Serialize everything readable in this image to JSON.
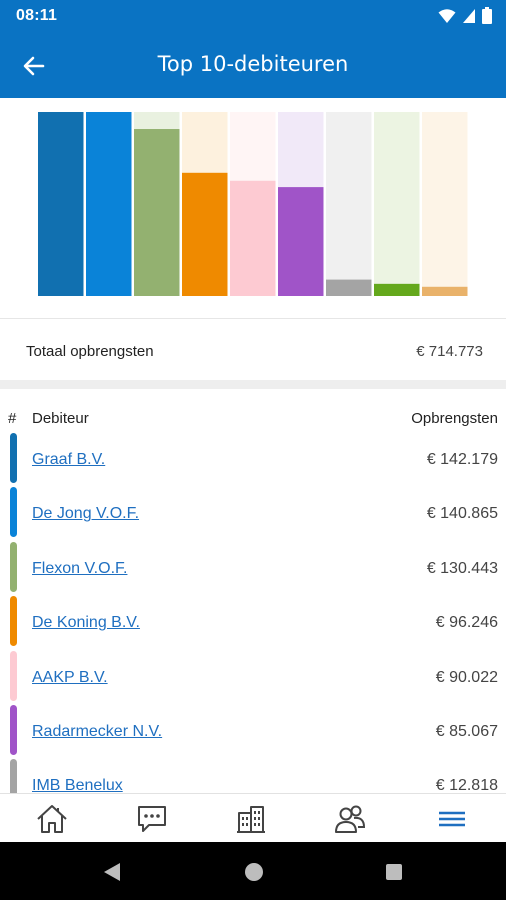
{
  "status_bar": {
    "time": "08:11"
  },
  "header": {
    "title": "Top 10-debiteuren",
    "back_icon": "arrow-left-icon"
  },
  "summary": {
    "label": "Totaal opbrengsten",
    "value": "€ 714.773"
  },
  "table": {
    "columns": {
      "rank": "#",
      "debtor": "Debiteur",
      "revenue": "Opbrengsten"
    },
    "rows": [
      {
        "name": "Graaf B.V.",
        "value": "€ 142.179",
        "color": "#1170b0"
      },
      {
        "name": "De Jong V.O.F.",
        "value": "€ 140.865",
        "color": "#0a83d8"
      },
      {
        "name": "Flexon V.O.F.",
        "value": "€ 130.443",
        "color": "#93b170"
      },
      {
        "name": "De Koning B.V.",
        "value": "€ 96.246",
        "color": "#ef8a00"
      },
      {
        "name": "AAKP B.V.",
        "value": "€ 90.022",
        "color": "#fdcad2"
      },
      {
        "name": "Radarmecker N.V.",
        "value": "€ 85.067",
        "color": "#a054c8"
      },
      {
        "name": "IMB Benelux",
        "value": "€ 12.818",
        "color": "#a4a4a4"
      }
    ]
  },
  "chart_data": {
    "type": "bar",
    "title": "",
    "xlabel": "",
    "ylabel": "",
    "ylim": [
      0,
      142179
    ],
    "values": [
      142179,
      140865,
      130443,
      96246,
      90022,
      85067,
      12818,
      9500,
      7200
    ],
    "colors": [
      "#1170b0",
      "#0a83d8",
      "#93b170",
      "#ef8a00",
      "#fdcad2",
      "#a054c8",
      "#a4a4a4",
      "#64a81c",
      "#e9b26a"
    ],
    "track_colors": [
      "#1170b0",
      "#0a83d8",
      "#e9f1e0",
      "#fdf1de",
      "#fff5f5",
      "#f1e9f8",
      "#f0f0f0",
      "#ecf4e2",
      "#fdf4e7"
    ]
  },
  "bottom_nav": {
    "items": [
      {
        "icon": "home-icon"
      },
      {
        "icon": "chat-icon"
      },
      {
        "icon": "buildings-icon"
      },
      {
        "icon": "contacts-icon"
      },
      {
        "icon": "menu-icon"
      }
    ],
    "accent": "#1f6fc0"
  },
  "system_nav": {
    "back": "back-triangle-icon",
    "home": "home-circle-icon",
    "recents": "recents-square-icon"
  }
}
